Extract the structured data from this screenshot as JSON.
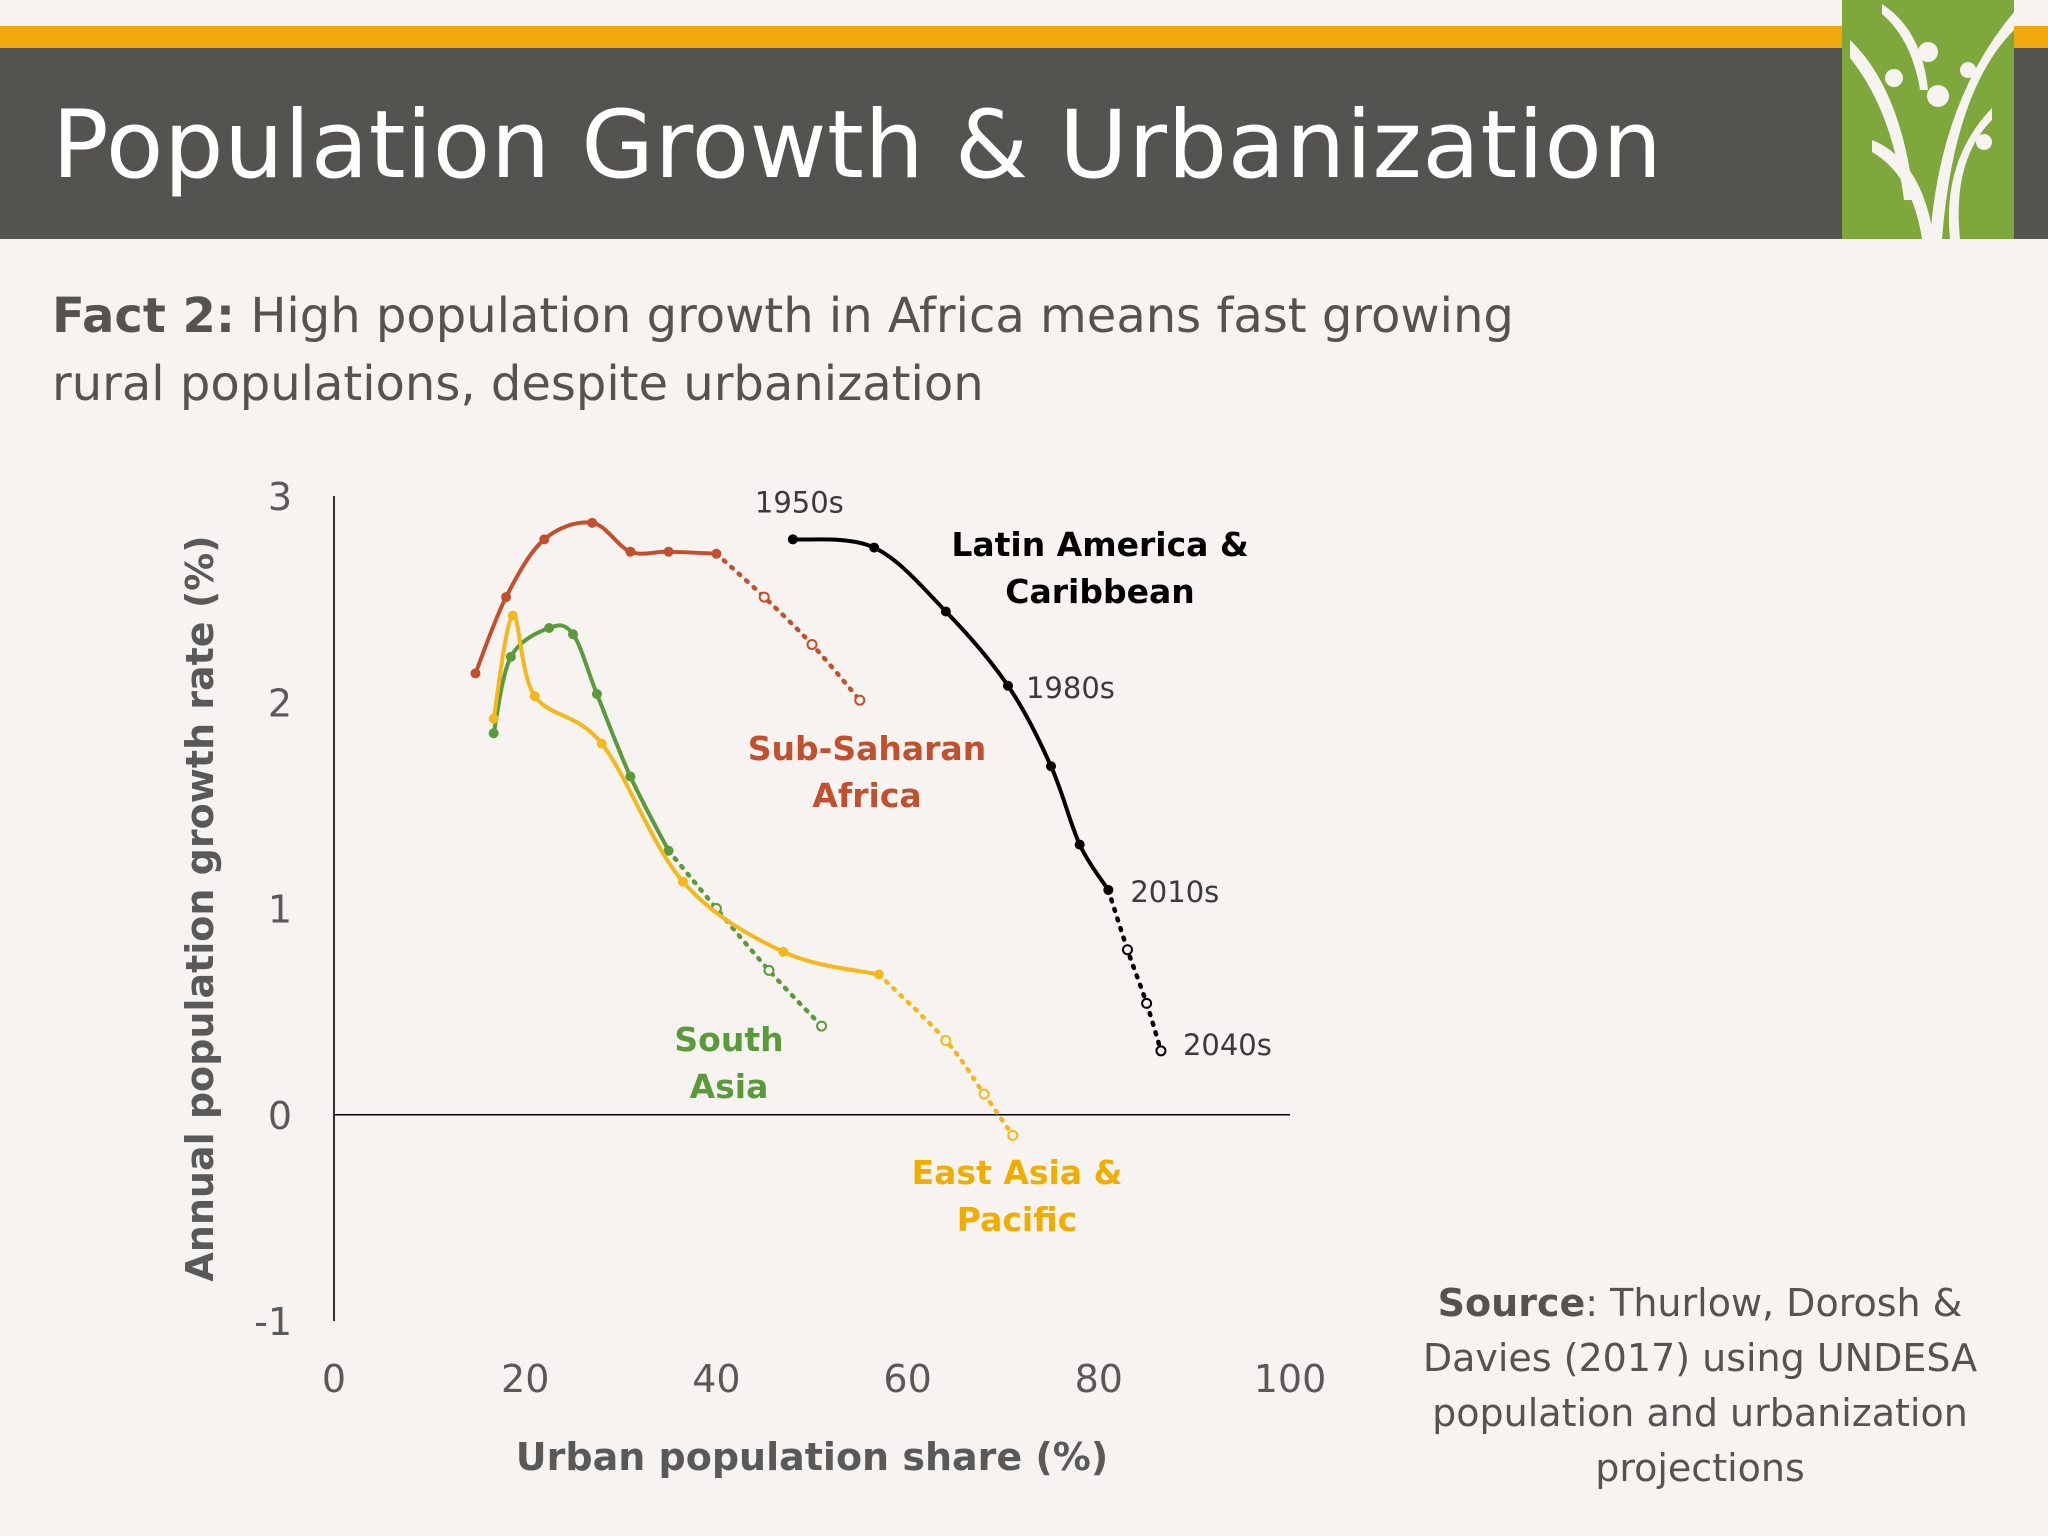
{
  "slide": {
    "title": "Population Growth & Urbanization",
    "fact_label": "Fact 2:",
    "fact_text": " High population growth in Africa means fast growing rural populations, despite urbanization",
    "source_label": "Source",
    "source_text": ": Thurlow, Dorosh & Davies (2017) using UNDESA population and urbanization projections",
    "logo_icon": "leaf-people-logo-icon"
  },
  "colors": {
    "gold": "#f1a90d",
    "title_bar": "#55534f",
    "logo_green": "#7fa83c",
    "axis": "#000000"
  },
  "chart_data": {
    "type": "line",
    "xlabel": "Urban population share (%)",
    "ylabel": "Annual population growth rate (%)",
    "xlim": [
      0,
      100
    ],
    "ylim": [
      -1,
      3
    ],
    "xticks": [
      0,
      20,
      40,
      60,
      80,
      100
    ],
    "yticks": [
      3,
      2,
      1,
      0,
      -1
    ],
    "grid": false,
    "legend": "none (series labelled directly on the plot)",
    "note": "solid line = historical, dotted line with open markers = projection",
    "series": [
      {
        "name": "Sub-Saharan Africa",
        "color": "#c0502e",
        "historical": [
          [
            14.8,
            2.14
          ],
          [
            18,
            2.51
          ],
          [
            22,
            2.79
          ],
          [
            27,
            2.87
          ],
          [
            31,
            2.73
          ],
          [
            35,
            2.73
          ],
          [
            40,
            2.72
          ]
        ],
        "projected": [
          [
            40,
            2.72
          ],
          [
            45,
            2.51
          ],
          [
            50,
            2.28
          ],
          [
            55,
            2.01
          ]
        ]
      },
      {
        "name": "South Asia",
        "color": "#5a9a3a",
        "historical": [
          [
            16.7,
            1.85
          ],
          [
            18.5,
            2.22
          ],
          [
            22.5,
            2.36
          ],
          [
            25,
            2.33
          ],
          [
            27.5,
            2.04
          ],
          [
            31,
            1.64
          ],
          [
            35,
            1.28
          ]
        ],
        "projected": [
          [
            35,
            1.28
          ],
          [
            40,
            1.0
          ],
          [
            45.5,
            0.7
          ],
          [
            51,
            0.43
          ]
        ]
      },
      {
        "name": "East Asia & Pacific",
        "color": "#f4b71d",
        "historical": [
          [
            16.7,
            1.92
          ],
          [
            18.7,
            2.42
          ],
          [
            21,
            2.03
          ],
          [
            28,
            1.8
          ],
          [
            36.5,
            1.13
          ],
          [
            47,
            0.79
          ],
          [
            57,
            0.68
          ]
        ],
        "projected": [
          [
            57,
            0.68
          ],
          [
            64,
            0.36
          ],
          [
            68,
            0.1
          ],
          [
            71,
            -0.1
          ]
        ]
      },
      {
        "name": "Latin America & Caribbean",
        "color": "#000000",
        "historical": [
          [
            48,
            2.79
          ],
          [
            56.5,
            2.75
          ],
          [
            64,
            2.44
          ],
          [
            70.5,
            2.08
          ],
          [
            75,
            1.69
          ],
          [
            78,
            1.31
          ],
          [
            81,
            1.09
          ]
        ],
        "projected": [
          [
            81,
            1.09
          ],
          [
            83,
            0.8
          ],
          [
            85,
            0.54
          ],
          [
            86.5,
            0.31
          ]
        ],
        "decade_labels": [
          {
            "text": "1950s",
            "x": 48,
            "y": 2.79
          },
          {
            "text": "1980s",
            "x": 70.5,
            "y": 2.08
          },
          {
            "text": "2010s",
            "x": 81,
            "y": 1.09
          },
          {
            "text": "2040s",
            "x": 86.5,
            "y": 0.31
          }
        ]
      }
    ],
    "annotations": {
      "ssa": [
        "Sub-Saharan",
        "Africa"
      ],
      "sa": [
        "South",
        "Asia"
      ],
      "eap": [
        "East Asia &",
        "Pacific"
      ],
      "lac": [
        "Latin America &",
        "Caribbean"
      ]
    }
  }
}
